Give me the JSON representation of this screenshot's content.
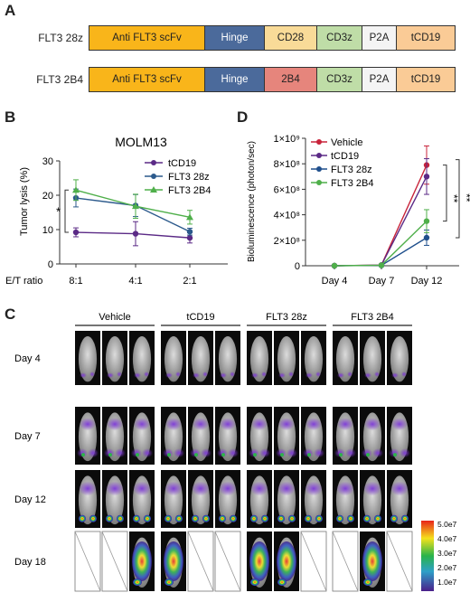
{
  "panels": {
    "a": "A",
    "b": "B",
    "c": "C",
    "d": "D"
  },
  "constructs": [
    {
      "name": "FLT3 28z",
      "segments": [
        {
          "label": "Anti FLT3 scFv",
          "color": "#F9B51A"
        },
        {
          "label": "Hinge",
          "color": "#4B6A9B"
        },
        {
          "label": "CD28",
          "color": "#F9DB98"
        },
        {
          "label": "CD3z",
          "color": "#BFDDA7"
        },
        {
          "label": "P2A",
          "color": "#F4F4F4"
        },
        {
          "label": "tCD19",
          "color": "#FACB96"
        }
      ]
    },
    {
      "name": "FLT3 2B4",
      "segments": [
        {
          "label": "Anti FLT3 scFv",
          "color": "#F9B51A"
        },
        {
          "label": "Hinge",
          "color": "#4B6A9B"
        },
        {
          "label": "2B4",
          "color": "#E6857C"
        },
        {
          "label": "CD3z",
          "color": "#BFDDA7"
        },
        {
          "label": "P2A",
          "color": "#F4F4F4"
        },
        {
          "label": "tCD19",
          "color": "#FACB96"
        }
      ]
    }
  ],
  "chart_data": [
    {
      "id": "B",
      "type": "line",
      "title": "MOLM13",
      "ylabel": "Tumor lysis (%)",
      "xlabel": "E/T ratio",
      "categories": [
        "8:1",
        "4:1",
        "2:1"
      ],
      "ylim": [
        0,
        30
      ],
      "yticks": [
        0,
        10,
        20,
        30
      ],
      "legend_position": "top-right",
      "series": [
        {
          "name": "tCD19",
          "color": "#5B2A86",
          "marker": "circle",
          "values": [
            9.2,
            8.8,
            7.6
          ],
          "err": [
            1.3,
            3.5,
            1.5
          ]
        },
        {
          "name": "FLT3 28z",
          "color": "#2C5A8C",
          "marker": "circle",
          "values": [
            19.2,
            17.0,
            9.4
          ],
          "err": [
            2.6,
            3.2,
            1.0
          ]
        },
        {
          "name": "FLT3 2B4",
          "color": "#4FAF4A",
          "marker": "triangle",
          "values": [
            21.5,
            16.8,
            13.6
          ],
          "err": [
            3.0,
            3.5,
            2.0
          ]
        }
      ],
      "annotations": [
        "*"
      ]
    },
    {
      "id": "D",
      "type": "line",
      "ylabel": "Bioluminescence (photon/sec)",
      "categories": [
        "Day 4",
        "Day 7",
        "Day 12"
      ],
      "ylim": [
        0,
        1000000000
      ],
      "yticks": [
        "0",
        "2×10⁸",
        "4×10⁸",
        "6×10⁸",
        "8×10⁸",
        "1×10⁹"
      ],
      "legend_position": "top-left",
      "series": [
        {
          "name": "Vehicle",
          "color": "#C8233A",
          "values": [
            0,
            5000000,
            790000000
          ],
          "err": [
            0,
            2000000,
            150000000
          ]
        },
        {
          "name": "tCD19",
          "color": "#5B2A86",
          "values": [
            0,
            5000000,
            700000000
          ],
          "err": [
            0,
            2000000,
            140000000
          ]
        },
        {
          "name": "FLT3 28z",
          "color": "#1F4F8C",
          "values": [
            0,
            3000000,
            220000000
          ],
          "err": [
            0,
            2000000,
            60000000
          ]
        },
        {
          "name": "FLT3 2B4",
          "color": "#4FAF4A",
          "values": [
            0,
            4000000,
            350000000
          ],
          "err": [
            0,
            2000000,
            90000000
          ]
        }
      ],
      "annotations": [
        "**",
        "**"
      ]
    }
  ],
  "imaging": {
    "groups": [
      "Vehicle",
      "tCD19",
      "FLT3 28z",
      "FLT3 2B4"
    ],
    "days": [
      "Day 4",
      "Day 7",
      "Day 12",
      "Day 18"
    ],
    "day18_alive": [
      false,
      false,
      true,
      true,
      false,
      false,
      true,
      true,
      false,
      false,
      true,
      false
    ],
    "colorbar_labels": [
      "5.0e7",
      "4.0e7",
      "3.0e7",
      "2.0e7",
      "1.0e7"
    ]
  }
}
